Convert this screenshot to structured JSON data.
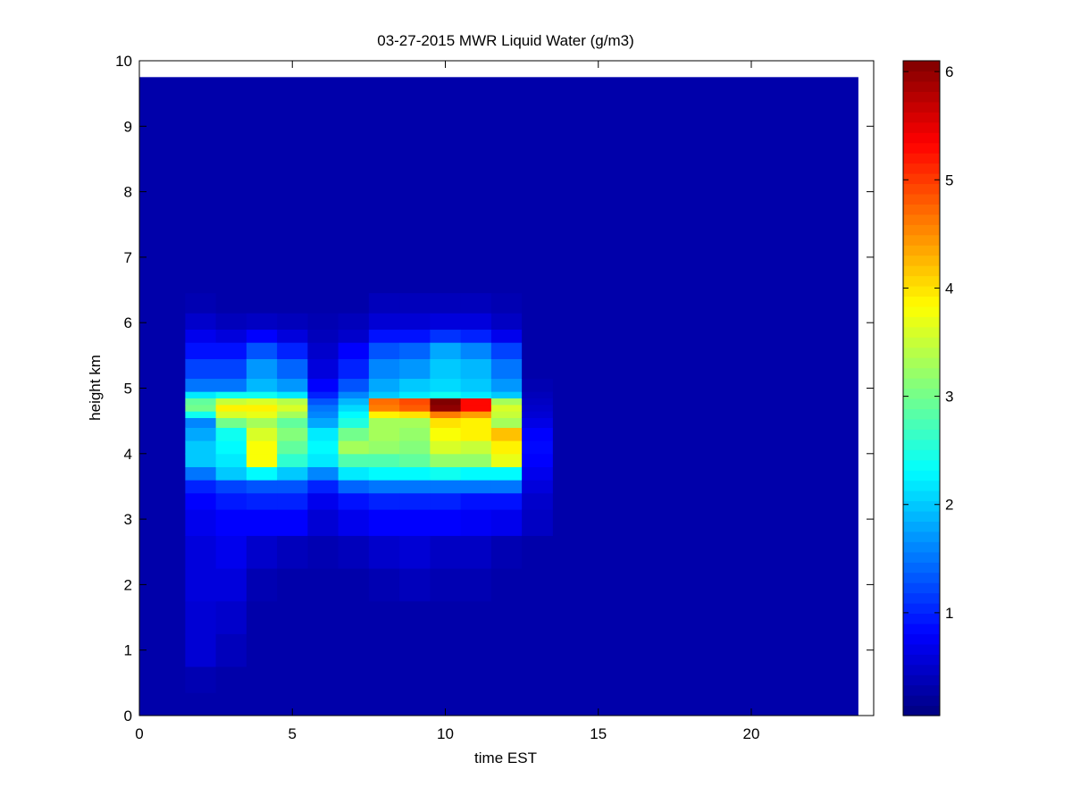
{
  "chart_data": {
    "type": "heatmap",
    "title": "03-27-2015 MWR Liquid Water (g/m3)",
    "xlabel": "time EST",
    "ylabel": "height km",
    "xlim": [
      0,
      24
    ],
    "ylim": [
      0,
      10
    ],
    "x_ticks": [
      0,
      5,
      10,
      15,
      20
    ],
    "y_ticks": [
      0,
      1,
      2,
      3,
      4,
      5,
      6,
      7,
      8,
      9,
      10
    ],
    "colorbar": {
      "colormap": "jet",
      "clim": [
        0.05,
        6.1
      ],
      "ticks": [
        1,
        2,
        3,
        4,
        5,
        6
      ]
    },
    "grid": false,
    "time_hours_EST": [
      0,
      1,
      2,
      3,
      4,
      5,
      6,
      7,
      8,
      9,
      10,
      11,
      12,
      13,
      14,
      15,
      16,
      17,
      18,
      19,
      20,
      21,
      22,
      23
    ],
    "data_extent_x": [
      0,
      23.5
    ],
    "data_extent_y": [
      0,
      9.75
    ],
    "background_value": 0.3,
    "profiles": [
      {
        "time": 2,
        "values": [
          [
            0.5,
            0.35
          ],
          [
            1.0,
            0.55
          ],
          [
            1.5,
            0.55
          ],
          [
            2.0,
            0.6
          ],
          [
            2.5,
            0.6
          ],
          [
            3.0,
            0.7
          ],
          [
            3.3,
            0.8
          ],
          [
            3.5,
            1.0
          ],
          [
            3.7,
            1.5
          ],
          [
            3.9,
            2.0
          ],
          [
            4.1,
            2.0
          ],
          [
            4.3,
            1.8
          ],
          [
            4.5,
            1.6
          ],
          [
            4.6,
            2.4
          ],
          [
            4.7,
            3.0
          ],
          [
            4.8,
            2.9
          ],
          [
            4.9,
            2.2
          ],
          [
            5.0,
            1.5
          ],
          [
            5.3,
            1.2
          ],
          [
            5.6,
            0.9
          ],
          [
            5.8,
            0.7
          ],
          [
            6.0,
            0.5
          ],
          [
            6.3,
            0.35
          ]
        ]
      },
      {
        "time": 3,
        "values": [
          [
            0.5,
            0.3
          ],
          [
            1.0,
            0.4
          ],
          [
            1.5,
            0.5
          ],
          [
            2.0,
            0.6
          ],
          [
            2.5,
            0.7
          ],
          [
            3.0,
            0.8
          ],
          [
            3.3,
            0.95
          ],
          [
            3.5,
            1.2
          ],
          [
            3.7,
            2.0
          ],
          [
            3.9,
            2.2
          ],
          [
            4.1,
            2.3
          ],
          [
            4.3,
            2.4
          ],
          [
            4.5,
            3.0
          ],
          [
            4.6,
            3.6
          ],
          [
            4.7,
            3.9
          ],
          [
            4.8,
            3.5
          ],
          [
            4.9,
            2.4
          ],
          [
            5.0,
            1.5
          ],
          [
            5.3,
            1.2
          ],
          [
            5.6,
            0.9
          ],
          [
            5.8,
            0.6
          ],
          [
            6.0,
            0.4
          ],
          [
            6.3,
            0.3
          ]
        ]
      },
      {
        "time": 4,
        "values": [
          [
            0.5,
            0.3
          ],
          [
            1.0,
            0.3
          ],
          [
            1.5,
            0.3
          ],
          [
            2.0,
            0.35
          ],
          [
            2.5,
            0.5
          ],
          [
            3.0,
            0.8
          ],
          [
            3.3,
            1.0
          ],
          [
            3.5,
            1.3
          ],
          [
            3.7,
            2.3
          ],
          [
            3.9,
            3.8
          ],
          [
            4.1,
            3.8
          ],
          [
            4.3,
            3.6
          ],
          [
            4.5,
            3.3
          ],
          [
            4.6,
            3.7
          ],
          [
            4.7,
            3.9
          ],
          [
            4.8,
            3.6
          ],
          [
            4.9,
            2.4
          ],
          [
            5.0,
            1.9
          ],
          [
            5.3,
            1.7
          ],
          [
            5.6,
            1.3
          ],
          [
            5.8,
            0.8
          ],
          [
            6.0,
            0.45
          ],
          [
            6.3,
            0.3
          ]
        ]
      },
      {
        "time": 5,
        "values": [
          [
            0.5,
            0.3
          ],
          [
            1.0,
            0.3
          ],
          [
            1.5,
            0.3
          ],
          [
            2.0,
            0.3
          ],
          [
            2.5,
            0.4
          ],
          [
            3.0,
            0.8
          ],
          [
            3.3,
            1.0
          ],
          [
            3.5,
            1.3
          ],
          [
            3.7,
            2.0
          ],
          [
            3.9,
            2.6
          ],
          [
            4.1,
            2.9
          ],
          [
            4.3,
            3.1
          ],
          [
            4.5,
            2.9
          ],
          [
            4.6,
            3.3
          ],
          [
            4.7,
            3.6
          ],
          [
            4.8,
            3.4
          ],
          [
            4.9,
            2.2
          ],
          [
            5.0,
            1.7
          ],
          [
            5.3,
            1.4
          ],
          [
            5.6,
            1.0
          ],
          [
            5.8,
            0.6
          ],
          [
            6.0,
            0.4
          ],
          [
            6.3,
            0.3
          ]
        ]
      },
      {
        "time": 6,
        "values": [
          [
            0.5,
            0.3
          ],
          [
            1.0,
            0.3
          ],
          [
            1.5,
            0.3
          ],
          [
            2.0,
            0.3
          ],
          [
            2.5,
            0.35
          ],
          [
            3.0,
            0.55
          ],
          [
            3.3,
            0.7
          ],
          [
            3.5,
            1.0
          ],
          [
            3.7,
            1.6
          ],
          [
            3.9,
            2.2
          ],
          [
            4.1,
            2.3
          ],
          [
            4.3,
            2.2
          ],
          [
            4.5,
            1.8
          ],
          [
            4.6,
            1.6
          ],
          [
            4.7,
            1.5
          ],
          [
            4.8,
            1.3
          ],
          [
            4.9,
            1.0
          ],
          [
            5.0,
            0.8
          ],
          [
            5.3,
            0.6
          ],
          [
            5.6,
            0.5
          ],
          [
            5.8,
            0.4
          ],
          [
            6.0,
            0.35
          ],
          [
            6.3,
            0.3
          ]
        ]
      },
      {
        "time": 7,
        "values": [
          [
            0.5,
            0.3
          ],
          [
            1.0,
            0.3
          ],
          [
            1.5,
            0.3
          ],
          [
            2.0,
            0.3
          ],
          [
            2.5,
            0.4
          ],
          [
            3.0,
            0.7
          ],
          [
            3.3,
            0.9
          ],
          [
            3.5,
            1.4
          ],
          [
            3.7,
            2.2
          ],
          [
            3.9,
            2.8
          ],
          [
            4.1,
            3.3
          ],
          [
            4.3,
            3.0
          ],
          [
            4.5,
            2.5
          ],
          [
            4.6,
            2.3
          ],
          [
            4.7,
            2.1
          ],
          [
            4.8,
            1.9
          ],
          [
            4.9,
            1.6
          ],
          [
            5.0,
            1.3
          ],
          [
            5.3,
            1.0
          ],
          [
            5.6,
            0.8
          ],
          [
            5.8,
            0.5
          ],
          [
            6.0,
            0.4
          ],
          [
            6.3,
            0.3
          ]
        ]
      },
      {
        "time": 8,
        "values": [
          [
            0.5,
            0.3
          ],
          [
            1.0,
            0.3
          ],
          [
            1.5,
            0.3
          ],
          [
            2.0,
            0.35
          ],
          [
            2.5,
            0.5
          ],
          [
            3.0,
            0.8
          ],
          [
            3.3,
            1.0
          ],
          [
            3.5,
            1.5
          ],
          [
            3.7,
            2.3
          ],
          [
            3.9,
            2.8
          ],
          [
            4.1,
            3.2
          ],
          [
            4.3,
            3.3
          ],
          [
            4.5,
            3.3
          ],
          [
            4.6,
            3.9
          ],
          [
            4.7,
            4.6
          ],
          [
            4.8,
            4.7
          ],
          [
            4.9,
            2.0
          ],
          [
            5.0,
            1.8
          ],
          [
            5.3,
            1.6
          ],
          [
            5.6,
            1.3
          ],
          [
            5.8,
            0.9
          ],
          [
            6.0,
            0.55
          ],
          [
            6.3,
            0.4
          ]
        ]
      },
      {
        "time": 9,
        "values": [
          [
            0.5,
            0.3
          ],
          [
            1.0,
            0.3
          ],
          [
            1.5,
            0.3
          ],
          [
            2.0,
            0.4
          ],
          [
            2.5,
            0.55
          ],
          [
            3.0,
            0.8
          ],
          [
            3.3,
            1.0
          ],
          [
            3.5,
            1.5
          ],
          [
            3.7,
            2.3
          ],
          [
            3.9,
            2.9
          ],
          [
            4.1,
            3.1
          ],
          [
            4.3,
            3.2
          ],
          [
            4.5,
            3.3
          ],
          [
            4.6,
            4.0
          ],
          [
            4.7,
            4.8
          ],
          [
            4.8,
            4.9
          ],
          [
            4.9,
            2.2
          ],
          [
            5.0,
            2.0
          ],
          [
            5.3,
            1.7
          ],
          [
            5.6,
            1.4
          ],
          [
            5.8,
            0.9
          ],
          [
            6.0,
            0.55
          ],
          [
            6.3,
            0.4
          ]
        ]
      },
      {
        "time": 10,
        "values": [
          [
            0.5,
            0.3
          ],
          [
            1.0,
            0.3
          ],
          [
            1.5,
            0.3
          ],
          [
            2.0,
            0.35
          ],
          [
            2.5,
            0.45
          ],
          [
            3.0,
            0.8
          ],
          [
            3.3,
            1.0
          ],
          [
            3.5,
            1.5
          ],
          [
            3.7,
            2.4
          ],
          [
            3.9,
            3.2
          ],
          [
            4.1,
            3.6
          ],
          [
            4.3,
            3.8
          ],
          [
            4.5,
            4.0
          ],
          [
            4.6,
            4.6
          ],
          [
            4.7,
            6.0
          ],
          [
            4.8,
            6.1
          ],
          [
            4.9,
            2.4
          ],
          [
            5.0,
            2.1
          ],
          [
            5.3,
            2.0
          ],
          [
            5.6,
            1.8
          ],
          [
            5.8,
            1.1
          ],
          [
            6.0,
            0.6
          ],
          [
            6.3,
            0.4
          ]
        ]
      },
      {
        "time": 11,
        "values": [
          [
            0.5,
            0.3
          ],
          [
            1.0,
            0.3
          ],
          [
            1.5,
            0.3
          ],
          [
            2.0,
            0.35
          ],
          [
            2.5,
            0.45
          ],
          [
            3.0,
            0.75
          ],
          [
            3.3,
            0.9
          ],
          [
            3.5,
            1.5
          ],
          [
            3.7,
            2.3
          ],
          [
            3.9,
            3.2
          ],
          [
            4.1,
            3.5
          ],
          [
            4.3,
            3.9
          ],
          [
            4.5,
            3.9
          ],
          [
            4.6,
            4.4
          ],
          [
            4.7,
            5.3
          ],
          [
            4.8,
            5.3
          ],
          [
            4.9,
            2.2
          ],
          [
            5.0,
            2.0
          ],
          [
            5.3,
            1.9
          ],
          [
            5.6,
            1.6
          ],
          [
            5.8,
            1.0
          ],
          [
            6.0,
            0.6
          ],
          [
            6.3,
            0.4
          ]
        ]
      },
      {
        "time": 12,
        "values": [
          [
            0.5,
            0.3
          ],
          [
            1.0,
            0.3
          ],
          [
            1.5,
            0.3
          ],
          [
            2.0,
            0.3
          ],
          [
            2.5,
            0.35
          ],
          [
            3.0,
            0.7
          ],
          [
            3.3,
            0.9
          ],
          [
            3.5,
            1.5
          ],
          [
            3.7,
            2.3
          ],
          [
            3.9,
            3.7
          ],
          [
            4.1,
            3.9
          ],
          [
            4.3,
            4.2
          ],
          [
            4.5,
            3.3
          ],
          [
            4.6,
            3.5
          ],
          [
            4.7,
            3.6
          ],
          [
            4.8,
            3.3
          ],
          [
            4.9,
            2.0
          ],
          [
            5.0,
            1.7
          ],
          [
            5.3,
            1.5
          ],
          [
            5.6,
            1.2
          ],
          [
            5.8,
            0.7
          ],
          [
            6.0,
            0.45
          ],
          [
            6.3,
            0.35
          ]
        ]
      },
      {
        "time": 13,
        "values": [
          [
            0.5,
            0.3
          ],
          [
            1.0,
            0.3
          ],
          [
            1.5,
            0.3
          ],
          [
            2.0,
            0.3
          ],
          [
            2.5,
            0.3
          ],
          [
            3.0,
            0.45
          ],
          [
            3.3,
            0.5
          ],
          [
            3.5,
            0.6
          ],
          [
            3.7,
            0.7
          ],
          [
            3.9,
            0.8
          ],
          [
            4.1,
            0.85
          ],
          [
            4.3,
            0.8
          ],
          [
            4.5,
            0.65
          ],
          [
            4.6,
            0.55
          ],
          [
            4.7,
            0.5
          ],
          [
            4.8,
            0.45
          ],
          [
            4.9,
            0.4
          ],
          [
            5.0,
            0.35
          ],
          [
            5.3,
            0.3
          ],
          [
            5.6,
            0.3
          ],
          [
            5.8,
            0.3
          ],
          [
            6.0,
            0.3
          ],
          [
            6.3,
            0.3
          ]
        ]
      }
    ]
  }
}
